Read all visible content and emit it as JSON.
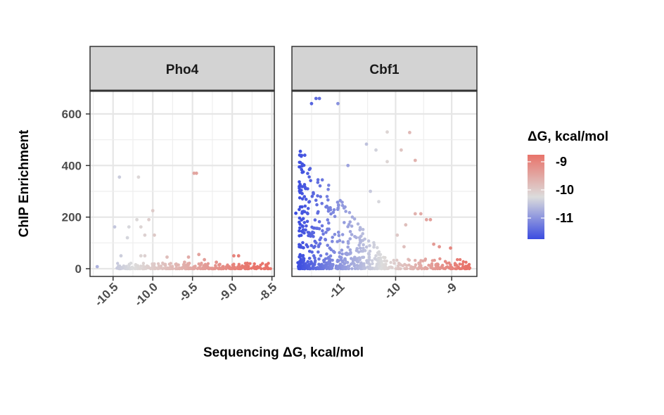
{
  "chart_data": {
    "type": "scatter",
    "xlabel": "Sequencing ΔG, kcal/mol",
    "ylabel": "ChIP Enrichment",
    "y_ticks": [
      0,
      200,
      400,
      600
    ],
    "ylim": [
      -30,
      690
    ],
    "grid": true,
    "legend": {
      "title": "ΔG, kcal/mol",
      "placement": "right",
      "range": [
        -11.75,
        -8.75
      ],
      "ticks": [
        -9,
        -10,
        -11
      ],
      "colors": {
        "low": "#3b4ce0",
        "mid": "#dcdcdc",
        "high": "#e8736a"
      }
    },
    "colors": {
      "strip_bg": "#d3d3d3",
      "grid": "#e6e6e6",
      "frame": "#333333"
    },
    "panels": [
      {
        "name": "Pho4",
        "xlim": [
          -10.79,
          -8.47
        ],
        "x_ticks": [
          -10.5,
          -10.0,
          -9.5,
          -9.0,
          -8.5
        ],
        "x_tick_labels": [
          "-10.5",
          "-10.0",
          "-9.5",
          "-9.0",
          "-8.5"
        ],
        "points": [
          [
            -10.7,
            8
          ],
          [
            -10.42,
            355
          ],
          [
            -10.18,
            355
          ],
          [
            -9.48,
            370
          ],
          [
            -9.45,
            370
          ],
          [
            -10.48,
            162
          ],
          [
            -10.32,
            120
          ],
          [
            -10.3,
            162
          ],
          [
            -10.2,
            190
          ],
          [
            -10.15,
            162
          ],
          [
            -10.1,
            130
          ],
          [
            -10.05,
            190
          ],
          [
            -10.0,
            225
          ],
          [
            -9.98,
            130
          ],
          [
            -10.4,
            50
          ],
          [
            -10.15,
            50
          ],
          [
            -10.1,
            50
          ],
          [
            -9.82,
            45
          ],
          [
            -9.55,
            45
          ],
          [
            -9.42,
            55
          ],
          [
            -8.98,
            50
          ],
          [
            -8.92,
            50
          ],
          [
            -9.2,
            25
          ],
          [
            -9.6,
            25
          ],
          [
            -9.35,
            35
          ]
        ],
        "band": [
          -10.45,
          -8.5
        ]
      },
      {
        "name": "Cbf1",
        "xlim": [
          -11.85,
          -8.55
        ],
        "x_ticks": [
          -11,
          -10,
          -9
        ],
        "x_tick_labels": [
          "-11",
          "-10",
          "-9"
        ],
        "points": [
          [
            -11.42,
            660
          ],
          [
            -11.36,
            660
          ],
          [
            -11.5,
            640
          ],
          [
            -11.03,
            640
          ],
          [
            -10.15,
            530
          ],
          [
            -9.75,
            528
          ],
          [
            -10.52,
            483
          ],
          [
            -10.35,
            460
          ],
          [
            -9.9,
            460
          ],
          [
            -9.65,
            420
          ],
          [
            -10.15,
            415
          ],
          [
            -10.85,
            400
          ],
          [
            -9.65,
            213
          ],
          [
            -9.55,
            213
          ],
          [
            -9.45,
            190
          ],
          [
            -9.38,
            190
          ],
          [
            -9.82,
            170
          ],
          [
            -9.97,
            130
          ],
          [
            -10.45,
            300
          ],
          [
            -10.3,
            260
          ],
          [
            -11.7,
            455
          ],
          [
            -11.62,
            440
          ],
          [
            -11.78,
            215
          ],
          [
            -11.7,
            90
          ],
          [
            -9.32,
            95
          ],
          [
            -9.22,
            85
          ],
          [
            -9.02,
            80
          ],
          [
            -9.85,
            85
          ]
        ],
        "band": [
          -11.75,
          -8.65
        ]
      }
    ]
  }
}
